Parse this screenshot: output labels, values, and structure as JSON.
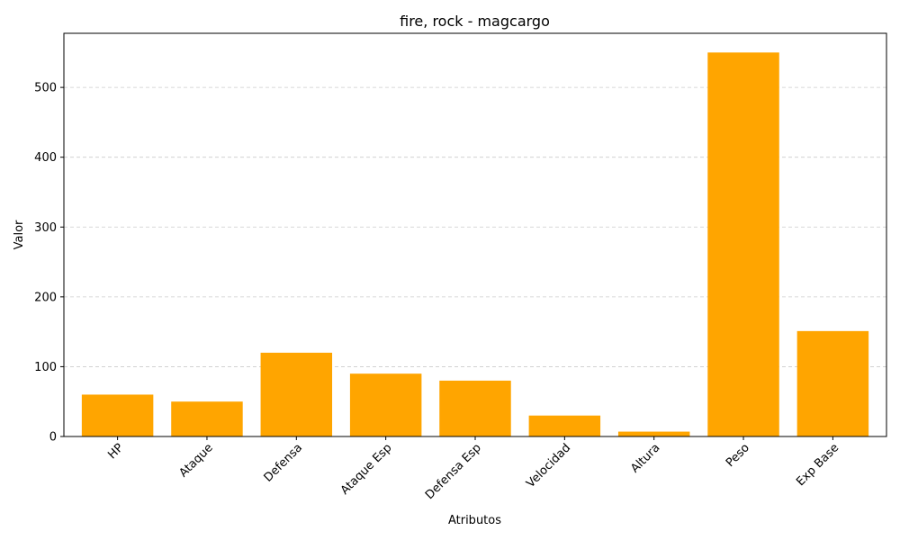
{
  "chart_data": {
    "type": "bar",
    "title": "fire, rock - magcargo",
    "xlabel": "Atributos",
    "ylabel": "Valor",
    "categories": [
      "HP",
      "Ataque",
      "Defensa",
      "Ataque Esp",
      "Defensa Esp",
      "Velocidad",
      "Altura",
      "Peso",
      "Exp Base"
    ],
    "values": [
      60,
      50,
      120,
      90,
      80,
      30,
      7,
      550,
      151
    ],
    "ylim": [
      0,
      577.5
    ],
    "yticks": [
      0,
      100,
      200,
      300,
      400,
      500
    ],
    "ytick_labels": [
      "0",
      "100",
      "200",
      "300",
      "400",
      "500"
    ],
    "bar_color": "#ffa500",
    "grid": {
      "axis": "y",
      "style": "dashed",
      "color": "#cccccc"
    },
    "xtick_rotation": 45
  }
}
